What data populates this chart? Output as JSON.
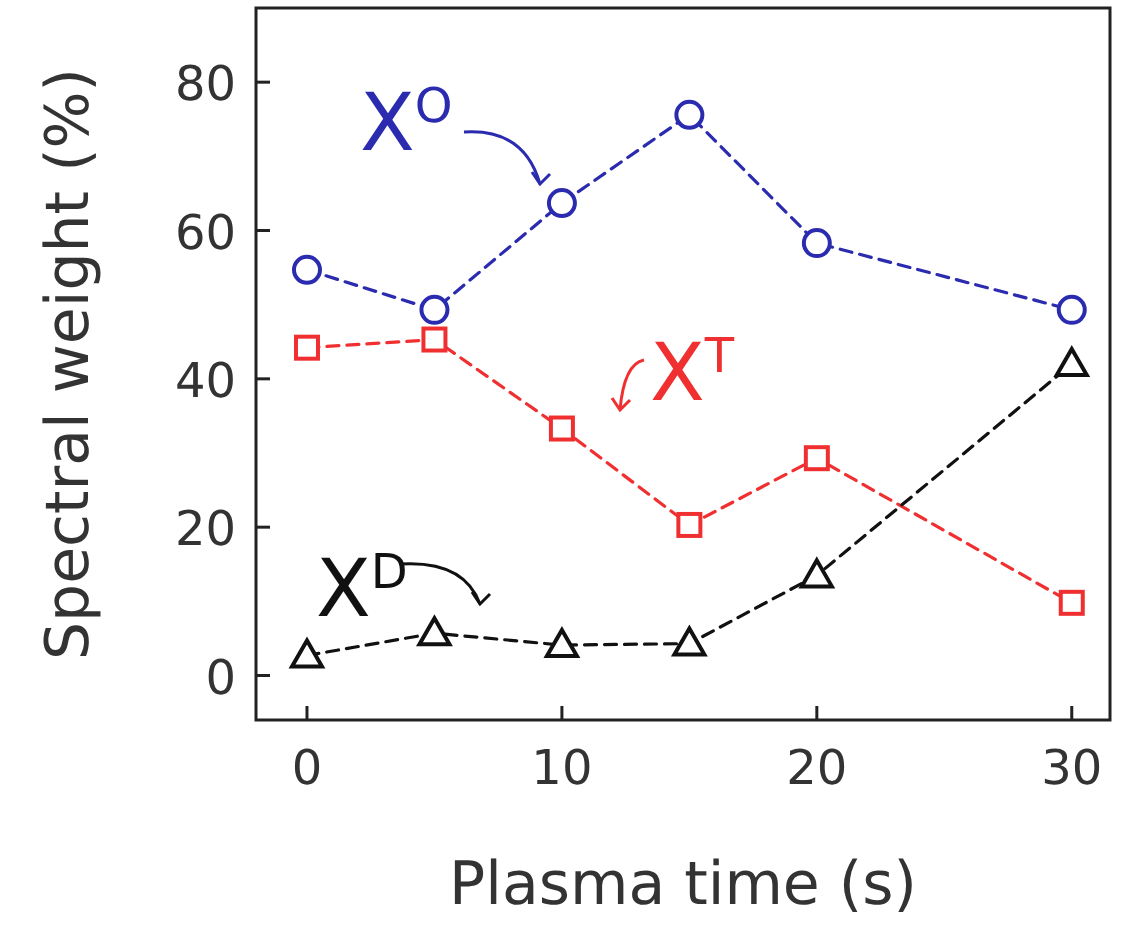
{
  "chart_data": {
    "type": "line",
    "xlabel": "Plasma time (s)",
    "ylabel": "Spectral weight (%)",
    "x": [
      0,
      5,
      10,
      15,
      20,
      30
    ],
    "xlim": [
      -2,
      31.5
    ],
    "ylim": [
      -6,
      90
    ],
    "xticks": [
      0,
      10,
      20,
      30
    ],
    "yticks": [
      0,
      20,
      40,
      60,
      80
    ],
    "grid": false,
    "legend": "top left",
    "line_style": "dashed",
    "series": [
      {
        "name": "X$^{O}$",
        "color": "#2b2bb0",
        "marker": "circle",
        "values": [
          54.7,
          49.3,
          63.7,
          75.6,
          58.3,
          49.3
        ]
      },
      {
        "name": "X$^{T}$",
        "color": "#f03030",
        "marker": "square",
        "values": [
          44.2,
          45.3,
          33.3,
          20.3,
          29.3,
          9.8
        ]
      },
      {
        "name": "X$^{D}$",
        "color": "#111111",
        "marker": "triangle",
        "values": [
          2.7,
          5.7,
          4.1,
          4.3,
          13.5,
          42
        ]
      }
    ]
  }
}
